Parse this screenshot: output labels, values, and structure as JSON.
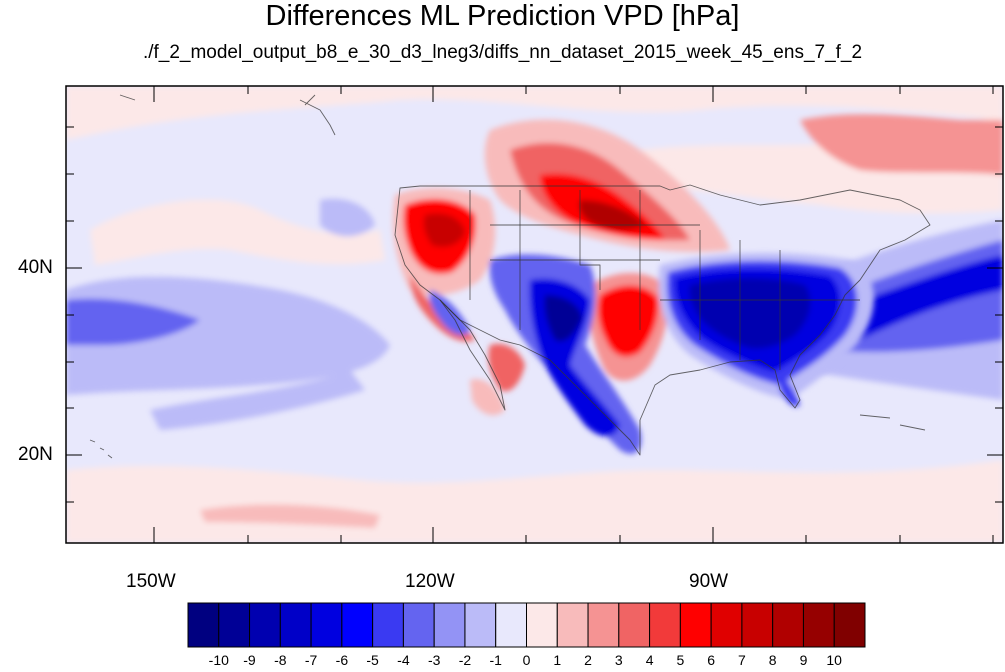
{
  "title": "Differences ML Prediction VPD [hPa]",
  "subtitle": "./f_2_model_output_b8_e_30_d3_lneg3/diffs_nn_dataset_2015_week_45_ens_7_f_2",
  "lat_labels": [
    "40N",
    "20N"
  ],
  "lon_labels": [
    "150W",
    "120W",
    "90W"
  ],
  "colorbar": {
    "labels": [
      "-10",
      "-9",
      "-8",
      "-7",
      "-6",
      "-5",
      "-4",
      "-3",
      "-2",
      "-1",
      "0",
      "1",
      "2",
      "3",
      "4",
      "5",
      "6",
      "7",
      "8",
      "9",
      "10"
    ],
    "colors": [
      "#000080",
      "#000096",
      "#0000b0",
      "#0000c8",
      "#0000e0",
      "#0000ff",
      "#3a3af2",
      "#6464f0",
      "#9393f5",
      "#bbbbf8",
      "#e8e8fc",
      "#fce8e8",
      "#f8bbbb",
      "#f59393",
      "#f06464",
      "#f23a3a",
      "#ff0000",
      "#e00000",
      "#c80000",
      "#b00000",
      "#960000",
      "#800000"
    ]
  },
  "palette": {
    "background": "#e8e8fc",
    "light_red": "#fce8e8",
    "mid_red": "#f59393",
    "strong_red": "#ff0000",
    "dark_red": "#b00000",
    "light_blue": "#bbbbf8",
    "mid_blue": "#6464f0",
    "strong_blue": "#0000e0",
    "dark_blue": "#000096"
  }
}
